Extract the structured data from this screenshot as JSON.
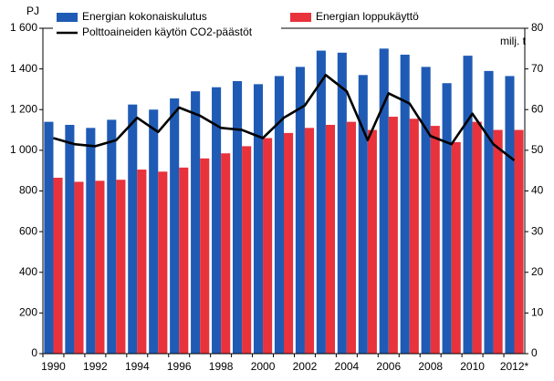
{
  "chart_data": {
    "type": "bar-line",
    "y_label": "PJ",
    "y2_label": "milj. t",
    "categories": [
      "1990",
      null,
      "1992",
      null,
      "1994",
      null,
      "1996",
      null,
      "1998",
      null,
      "2000",
      null,
      "2002",
      null,
      "2004",
      null,
      "2006",
      null,
      "2008",
      null,
      "2010",
      null,
      "2012*"
    ],
    "series": [
      {
        "name": "Energian kokonaiskulutus",
        "color": "#1f5bb5",
        "type": "bar",
        "values": [
          1140,
          1125,
          1110,
          1150,
          1225,
          1200,
          1255,
          1290,
          1310,
          1340,
          1325,
          1365,
          1410,
          1490,
          1480,
          1370,
          1500,
          1470,
          1410,
          1330,
          1465,
          1390,
          1365
        ]
      },
      {
        "name": "Energian loppukäyttö",
        "color": "#e8323c",
        "type": "bar",
        "values": [
          865,
          845,
          850,
          855,
          905,
          895,
          915,
          960,
          985,
          1020,
          1060,
          1085,
          1110,
          1125,
          1140,
          1100,
          1165,
          1155,
          1120,
          1040,
          1140,
          1100,
          1100
        ]
      },
      {
        "name": "Polttoaineiden käytön CO2-päästöt",
        "color": "#000000",
        "type": "line",
        "axis": "y2",
        "values": [
          53,
          51.5,
          51,
          52.5,
          58,
          54.5,
          60.5,
          58.5,
          55.5,
          55,
          53,
          58,
          61,
          68.5,
          64.5,
          52.5,
          64,
          61.5,
          53.5,
          51.5,
          59,
          51.5,
          47.5
        ]
      }
    ],
    "ylim": [
      0,
      1600
    ],
    "yticks": [
      0,
      200,
      400,
      600,
      800,
      {
        "value": 1000,
        "label": "1 000"
      },
      {
        "value": 1200,
        "label": "1 200"
      },
      {
        "value": 1400,
        "label": "1 400"
      },
      {
        "value": 1600,
        "label": "1 600"
      }
    ],
    "y2lim": [
      0,
      80
    ],
    "y2ticks": [
      0,
      10,
      20,
      30,
      40,
      50,
      60,
      70,
      80
    ],
    "grid": false
  }
}
